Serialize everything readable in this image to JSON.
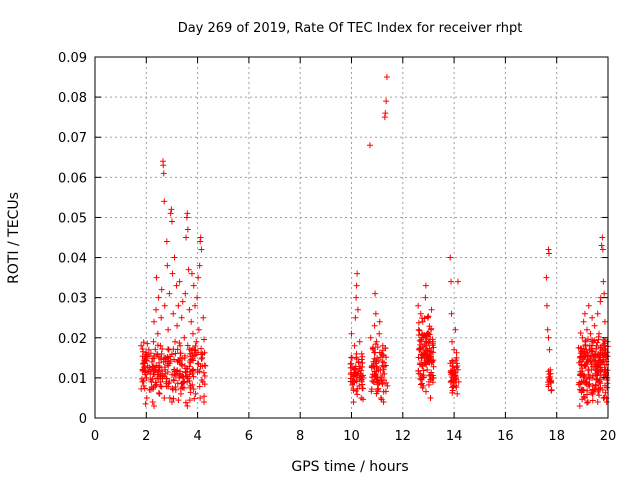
{
  "chart_data": {
    "type": "scatter",
    "title": "Day 269 of 2019, Rate Of TEC Index for receiver rhpt",
    "xlabel": "GPS time / hours",
    "ylabel": "ROTI / TECUs",
    "xlim": [
      0,
      20
    ],
    "ylim": [
      0,
      0.09
    ],
    "xticks": [
      0,
      2,
      4,
      6,
      8,
      10,
      12,
      14,
      16,
      18,
      20
    ],
    "xtick_labels": [
      "0",
      "2",
      "4",
      "6",
      "8",
      "10",
      "12",
      "14",
      "16",
      "18",
      "20"
    ],
    "yticks": [
      0,
      0.01,
      0.02,
      0.03,
      0.04,
      0.05,
      0.06,
      0.07,
      0.08,
      0.09
    ],
    "ytick_labels": [
      "0",
      "0.01",
      "0.02",
      "0.03",
      "0.04",
      "0.05",
      "0.06",
      "0.07",
      "0.08",
      "0.09"
    ],
    "grid": true,
    "marker": "+",
    "color": "#ff0000",
    "series": [
      {
        "name": "ROTI",
        "points": [
          [
            1.8,
            0.018
          ],
          [
            1.85,
            0.012
          ],
          [
            1.9,
            0.008
          ],
          [
            1.95,
            0.015
          ],
          [
            2.0,
            0.01
          ],
          [
            2.02,
            0.005
          ],
          [
            2.05,
            0.013
          ],
          [
            2.1,
            0.017
          ],
          [
            2.12,
            0.007
          ],
          [
            2.15,
            0.011
          ],
          [
            2.2,
            0.009
          ],
          [
            2.22,
            0.014
          ],
          [
            2.25,
            0.004
          ],
          [
            2.28,
            0.019
          ],
          [
            2.3,
            0.024
          ],
          [
            2.32,
            0.012
          ],
          [
            2.35,
            0.008
          ],
          [
            2.38,
            0.027
          ],
          [
            2.4,
            0.035
          ],
          [
            2.42,
            0.016
          ],
          [
            2.45,
            0.021
          ],
          [
            2.48,
            0.03
          ],
          [
            2.5,
            0.013
          ],
          [
            2.52,
            0.006
          ],
          [
            2.55,
            0.018
          ],
          [
            2.58,
            0.025
          ],
          [
            2.6,
            0.032
          ],
          [
            2.62,
            0.011
          ],
          [
            2.65,
            0.064
          ],
          [
            2.66,
            0.063
          ],
          [
            2.68,
            0.061
          ],
          [
            2.7,
            0.054
          ],
          [
            2.72,
            0.028
          ],
          [
            2.75,
            0.015
          ],
          [
            2.78,
            0.009
          ],
          [
            2.8,
            0.044
          ],
          [
            2.82,
            0.038
          ],
          [
            2.85,
            0.022
          ],
          [
            2.88,
            0.017
          ],
          [
            2.9,
            0.031
          ],
          [
            2.92,
            0.005
          ],
          [
            2.95,
            0.051
          ],
          [
            2.98,
            0.052
          ],
          [
            3.0,
            0.049
          ],
          [
            3.02,
            0.036
          ],
          [
            3.05,
            0.026
          ],
          [
            3.08,
            0.012
          ],
          [
            3.1,
            0.04
          ],
          [
            3.12,
            0.019
          ],
          [
            3.15,
            0.007
          ],
          [
            3.18,
            0.033
          ],
          [
            3.2,
            0.023
          ],
          [
            3.22,
            0.014
          ],
          [
            3.25,
            0.028
          ],
          [
            3.28,
            0.01
          ],
          [
            3.3,
            0.034
          ],
          [
            3.32,
            0.018
          ],
          [
            3.35,
            0.006
          ],
          [
            3.38,
            0.025
          ],
          [
            3.4,
            0.013
          ],
          [
            3.42,
            0.029
          ],
          [
            3.45,
            0.009
          ],
          [
            3.48,
            0.02
          ],
          [
            3.5,
            0.015
          ],
          [
            3.52,
            0.031
          ],
          [
            3.55,
            0.045
          ],
          [
            3.58,
            0.05
          ],
          [
            3.6,
            0.051
          ],
          [
            3.62,
            0.047
          ],
          [
            3.65,
            0.037
          ],
          [
            3.68,
            0.027
          ],
          [
            3.7,
            0.016
          ],
          [
            3.72,
            0.008
          ],
          [
            3.75,
            0.024
          ],
          [
            3.78,
            0.036
          ],
          [
            3.8,
            0.011
          ],
          [
            3.82,
            0.021
          ],
          [
            3.85,
            0.033
          ],
          [
            3.88,
            0.017
          ],
          [
            3.9,
            0.028
          ],
          [
            3.92,
            0.006
          ],
          [
            3.95,
            0.019
          ],
          [
            3.98,
            0.03
          ],
          [
            4.0,
            0.012
          ],
          [
            4.02,
            0.035
          ],
          [
            4.05,
            0.022
          ],
          [
            4.08,
            0.038
          ],
          [
            4.1,
            0.044
          ],
          [
            4.12,
            0.045
          ],
          [
            4.15,
            0.042
          ],
          [
            4.18,
            0.015
          ],
          [
            4.2,
            0.009
          ],
          [
            4.22,
            0.025
          ],
          [
            4.25,
            0.004
          ],
          [
            4.3,
            0.013
          ],
          [
            2.3,
            0.003
          ],
          [
            3.0,
            0.004
          ],
          [
            3.6,
            0.003
          ],
          [
            4.1,
            0.005
          ],
          [
            2.7,
            0.005
          ],
          [
            10.0,
            0.021
          ],
          [
            10.02,
            0.015
          ],
          [
            10.05,
            0.009
          ],
          [
            10.08,
            0.004
          ],
          [
            10.1,
            0.012
          ],
          [
            10.12,
            0.018
          ],
          [
            10.15,
            0.025
          ],
          [
            10.18,
            0.03
          ],
          [
            10.2,
            0.033
          ],
          [
            10.22,
            0.036
          ],
          [
            10.25,
            0.027
          ],
          [
            10.28,
            0.014
          ],
          [
            10.3,
            0.008
          ],
          [
            10.32,
            0.019
          ],
          [
            10.35,
            0.011
          ],
          [
            10.38,
            0.005
          ],
          [
            10.4,
            0.016
          ],
          [
            10.45,
            0.01
          ],
          [
            10.72,
            0.068
          ],
          [
            10.75,
            0.02
          ],
          [
            10.8,
            0.013
          ],
          [
            10.85,
            0.017
          ],
          [
            10.88,
            0.009
          ],
          [
            10.9,
            0.023
          ],
          [
            10.92,
            0.031
          ],
          [
            10.95,
            0.026
          ],
          [
            10.98,
            0.019
          ],
          [
            11.0,
            0.015
          ],
          [
            11.02,
            0.007
          ],
          [
            11.05,
            0.012
          ],
          [
            11.08,
            0.021
          ],
          [
            11.1,
            0.024
          ],
          [
            11.12,
            0.01
          ],
          [
            11.15,
            0.005
          ],
          [
            11.18,
            0.016
          ],
          [
            11.2,
            0.013
          ],
          [
            11.22,
            0.018
          ],
          [
            11.25,
            0.004
          ],
          [
            11.28,
            0.011
          ],
          [
            11.3,
            0.075
          ],
          [
            11.32,
            0.076
          ],
          [
            11.35,
            0.079
          ],
          [
            11.38,
            0.085
          ],
          [
            11.4,
            0.008
          ],
          [
            12.6,
            0.028
          ],
          [
            12.62,
            0.022
          ],
          [
            12.65,
            0.017
          ],
          [
            12.68,
            0.011
          ],
          [
            12.7,
            0.026
          ],
          [
            12.72,
            0.019
          ],
          [
            12.75,
            0.013
          ],
          [
            12.78,
            0.024
          ],
          [
            12.8,
            0.008
          ],
          [
            12.82,
            0.02
          ],
          [
            12.85,
            0.015
          ],
          [
            12.88,
            0.03
          ],
          [
            12.9,
            0.033
          ],
          [
            12.92,
            0.018
          ],
          [
            12.95,
            0.012
          ],
          [
            12.98,
            0.025
          ],
          [
            13.0,
            0.021
          ],
          [
            13.02,
            0.009
          ],
          [
            13.05,
            0.016
          ],
          [
            13.08,
            0.005
          ],
          [
            13.1,
            0.022
          ],
          [
            13.12,
            0.027
          ],
          [
            13.15,
            0.014
          ],
          [
            13.18,
            0.019
          ],
          [
            13.2,
            0.01
          ],
          [
            13.85,
            0.04
          ],
          [
            13.88,
            0.034
          ],
          [
            13.9,
            0.026
          ],
          [
            13.92,
            0.019
          ],
          [
            13.95,
            0.014
          ],
          [
            13.98,
            0.008
          ],
          [
            14.0,
            0.017
          ],
          [
            14.02,
            0.012
          ],
          [
            14.05,
            0.022
          ],
          [
            14.08,
            0.01
          ],
          [
            14.1,
            0.015
          ],
          [
            14.12,
            0.006
          ],
          [
            14.15,
            0.034
          ],
          [
            14.18,
            0.009
          ],
          [
            17.6,
            0.035
          ],
          [
            17.62,
            0.028
          ],
          [
            17.65,
            0.022
          ],
          [
            17.68,
            0.042
          ],
          [
            17.7,
            0.041
          ],
          [
            17.72,
            0.017
          ],
          [
            17.75,
            0.012
          ],
          [
            17.78,
            0.009
          ],
          [
            17.8,
            0.007
          ],
          [
            17.68,
            0.02
          ],
          [
            18.9,
            0.015
          ],
          [
            18.95,
            0.011
          ],
          [
            19.0,
            0.02
          ],
          [
            19.02,
            0.007
          ],
          [
            19.05,
            0.024
          ],
          [
            19.08,
            0.013
          ],
          [
            19.1,
            0.026
          ],
          [
            19.12,
            0.018
          ],
          [
            19.15,
            0.009
          ],
          [
            19.18,
            0.022
          ],
          [
            19.2,
            0.014
          ],
          [
            19.22,
            0.004
          ],
          [
            19.25,
            0.028
          ],
          [
            19.28,
            0.017
          ],
          [
            19.3,
            0.01
          ],
          [
            19.32,
            0.021
          ],
          [
            19.35,
            0.012
          ],
          [
            19.38,
            0.025
          ],
          [
            19.4,
            0.006
          ],
          [
            19.42,
            0.019
          ],
          [
            19.45,
            0.015
          ],
          [
            19.48,
            0.023
          ],
          [
            19.5,
            0.011
          ],
          [
            19.52,
            0.008
          ],
          [
            19.55,
            0.018
          ],
          [
            19.58,
            0.013
          ],
          [
            19.6,
            0.026
          ],
          [
            19.62,
            0.016
          ],
          [
            19.65,
            0.021
          ],
          [
            19.68,
            0.009
          ],
          [
            19.7,
            0.029
          ],
          [
            19.72,
            0.03
          ],
          [
            19.75,
            0.043
          ],
          [
            19.78,
            0.045
          ],
          [
            19.8,
            0.042
          ],
          [
            19.82,
            0.034
          ],
          [
            19.85,
            0.031
          ],
          [
            19.88,
            0.024
          ],
          [
            19.9,
            0.017
          ],
          [
            19.92,
            0.011
          ],
          [
            19.95,
            0.004
          ],
          [
            19.98,
            0.019
          ],
          [
            18.9,
            0.003
          ],
          [
            19.1,
            0.005
          ],
          [
            19.6,
            0.004
          ]
        ],
        "dense_clusters": [
          {
            "x_range": [
              1.8,
              4.3
            ],
            "y_range": [
              0.003,
              0.02
            ],
            "count": 220,
            "seed": 11
          },
          {
            "x_range": [
              9.95,
              10.45
            ],
            "y_range": [
              0.004,
              0.018
            ],
            "count": 60,
            "seed": 23
          },
          {
            "x_range": [
              10.75,
              11.35
            ],
            "y_range": [
              0.004,
              0.02
            ],
            "count": 70,
            "seed": 37
          },
          {
            "x_range": [
              12.6,
              13.2
            ],
            "y_range": [
              0.006,
              0.026
            ],
            "count": 110,
            "seed": 41
          },
          {
            "x_range": [
              13.85,
              14.15
            ],
            "y_range": [
              0.005,
              0.018
            ],
            "count": 40,
            "seed": 53
          },
          {
            "x_range": [
              17.65,
              17.8
            ],
            "y_range": [
              0.006,
              0.012
            ],
            "count": 15,
            "seed": 61
          },
          {
            "x_range": [
              18.85,
              20.0
            ],
            "y_range": [
              0.003,
              0.022
            ],
            "count": 200,
            "seed": 71
          }
        ]
      }
    ]
  }
}
